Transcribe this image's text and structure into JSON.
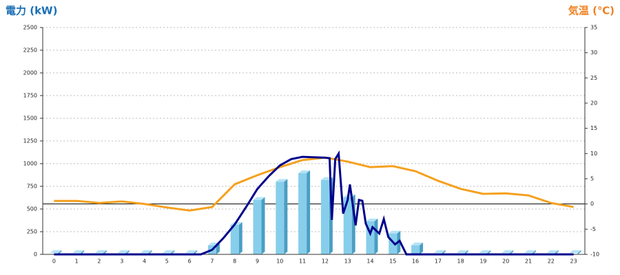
{
  "chart_data": {
    "type": "bar_line_combo",
    "y_title": "電力 (kW)",
    "y2_title": "気温 (℃)",
    "categories": [
      "0",
      "1",
      "2",
      "3",
      "4",
      "5",
      "6",
      "7",
      "8",
      "9",
      "10",
      "11",
      "12",
      "13",
      "14",
      "15",
      "16",
      "17",
      "18",
      "19",
      "20",
      "21",
      "22",
      "23"
    ],
    "ylim": [
      0,
      2500
    ],
    "yticks": [
      0,
      250,
      500,
      750,
      1000,
      1250,
      1500,
      1750,
      2000,
      2250,
      2500
    ],
    "y2lim": [
      -10,
      35
    ],
    "y2ticks": [
      -10,
      -5,
      0,
      5,
      10,
      15,
      20,
      25,
      30,
      35
    ],
    "grid": true,
    "bars": {
      "color": "#87ceeb",
      "values": [
        0,
        0,
        0,
        0,
        0,
        0,
        0,
        100,
        325,
        600,
        800,
        895,
        820,
        630,
        365,
        230,
        100,
        0,
        0,
        0,
        0,
        0,
        0,
        0
      ]
    },
    "power_line": {
      "color": "#00008b",
      "x": [
        0,
        6.5,
        7,
        7.5,
        8,
        8.5,
        9,
        9.5,
        10,
        10.5,
        11,
        11.5,
        12,
        12.2,
        12.3,
        12.45,
        12.6,
        12.8,
        13,
        13.1,
        13.35,
        13.5,
        13.65,
        13.8,
        14,
        14.1,
        14.4,
        14.6,
        14.8,
        15.1,
        15.3,
        15.6,
        23
      ],
      "values": [
        0,
        0,
        50,
        180,
        330,
        520,
        720,
        860,
        980,
        1050,
        1075,
        1070,
        1065,
        1060,
        380,
        1050,
        1110,
        450,
        600,
        770,
        320,
        600,
        590,
        340,
        230,
        300,
        230,
        390,
        190,
        110,
        150,
        0,
        0
      ]
    },
    "temperature": {
      "color": "#f5a01e",
      "axis": "y2",
      "values": [
        0.6,
        0.6,
        0.2,
        0.5,
        0,
        -0.7,
        -1.3,
        -0.6,
        3.9,
        5.7,
        7.3,
        8.7,
        9.2,
        8.4,
        7.3,
        7.5,
        6.5,
        4.6,
        3,
        2,
        2.1,
        1.7,
        0.2,
        -0.6
      ]
    }
  }
}
